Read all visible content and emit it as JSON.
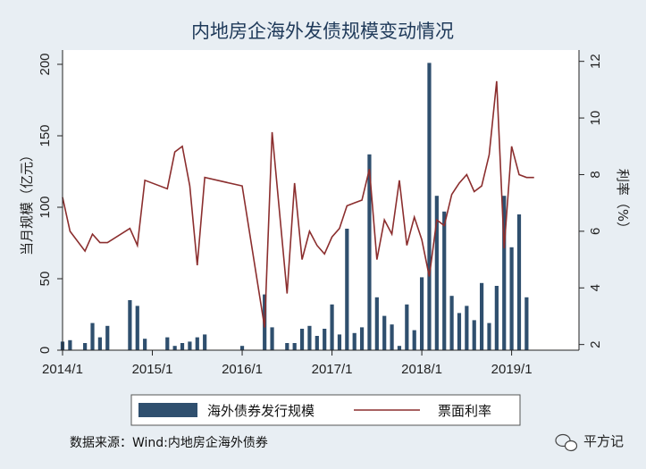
{
  "header": {
    "title": "内地房企海外发债规模变动情况"
  },
  "footer": {
    "source": "数据来源：Wind:内地房企海外债券"
  },
  "watermark": {
    "text": "平方记",
    "icon": "wechat-icon"
  },
  "colors": {
    "bar": "#2f4f6e",
    "line": "#8b2e2e",
    "plot_bg": "#ffffff",
    "page_bg": "#e8eef3",
    "grid": "#ffffff"
  },
  "chart_data": {
    "type": "bar",
    "title": "内地房企海外发债规模变动情况",
    "xlabel": "",
    "ylabel": "当月规模（亿元）",
    "y2label": "利率（%）",
    "ylim": [
      0,
      210
    ],
    "y2lim": [
      1.8,
      12.4
    ],
    "yticks": [
      0,
      50,
      100,
      150,
      200
    ],
    "y2ticks": [
      2,
      4,
      6,
      8,
      10,
      12
    ],
    "xlim": [
      0,
      69
    ],
    "xticks": [
      {
        "x": 0,
        "label": "2014/1"
      },
      {
        "x": 12,
        "label": "2015/1"
      },
      {
        "x": 24,
        "label": "2016/1"
      },
      {
        "x": 36,
        "label": "2017/1"
      },
      {
        "x": 48,
        "label": "2018/1"
      },
      {
        "x": 60,
        "label": "2019/1"
      }
    ],
    "legend": {
      "position": "bottom"
    },
    "series": [
      {
        "name": "海外债券发行规模",
        "kind": "bar",
        "axis": "left",
        "x": [
          0,
          1,
          3,
          4,
          5,
          6,
          9,
          10,
          11,
          14,
          15,
          16,
          17,
          18,
          19,
          24,
          27,
          28,
          30,
          31,
          32,
          33,
          34,
          35,
          36,
          37,
          38,
          39,
          40,
          41,
          42,
          43,
          44,
          45,
          46,
          47,
          48,
          49,
          50,
          51,
          52,
          53,
          54,
          55,
          56,
          57,
          58,
          59,
          60,
          61,
          62,
          63
        ],
        "values": [
          6,
          7,
          5,
          19,
          9,
          17,
          35,
          31,
          8,
          9,
          3,
          5,
          6,
          9,
          11,
          3,
          39,
          16,
          5,
          5,
          15,
          17,
          10,
          15,
          32,
          11,
          85,
          12,
          16,
          137,
          37,
          24,
          18,
          3,
          32,
          14,
          51,
          201,
          108,
          97,
          38,
          26,
          31,
          21,
          47,
          19,
          45,
          108,
          72,
          95,
          37,
          0
        ]
      },
      {
        "name": "票面利率",
        "kind": "line",
        "axis": "right",
        "x": [
          0,
          1,
          3,
          4,
          5,
          6,
          9,
          10,
          11,
          14,
          15,
          16,
          17,
          18,
          19,
          24,
          27,
          28,
          30,
          31,
          32,
          33,
          34,
          35,
          36,
          37,
          38,
          39,
          40,
          41,
          42,
          43,
          44,
          45,
          46,
          47,
          48,
          49,
          50,
          51,
          52,
          53,
          54,
          55,
          56,
          57,
          58,
          59,
          60,
          61,
          62,
          63
        ],
        "values": [
          7.2,
          6.0,
          5.3,
          5.9,
          5.6,
          5.6,
          6.1,
          5.5,
          7.8,
          7.5,
          8.8,
          9.0,
          7.6,
          4.8,
          7.9,
          7.6,
          2.6,
          9.5,
          3.8,
          7.7,
          5.0,
          6.0,
          5.5,
          5.2,
          5.8,
          6.1,
          6.9,
          7.0,
          7.1,
          8.2,
          5.0,
          6.4,
          5.9,
          7.8,
          5.5,
          6.5,
          5.7,
          4.4,
          6.4,
          6.2,
          7.3,
          7.7,
          8.0,
          7.4,
          7.6,
          8.7,
          11.3,
          5.4,
          9.0,
          8.0,
          7.9,
          7.9
        ]
      }
    ]
  }
}
